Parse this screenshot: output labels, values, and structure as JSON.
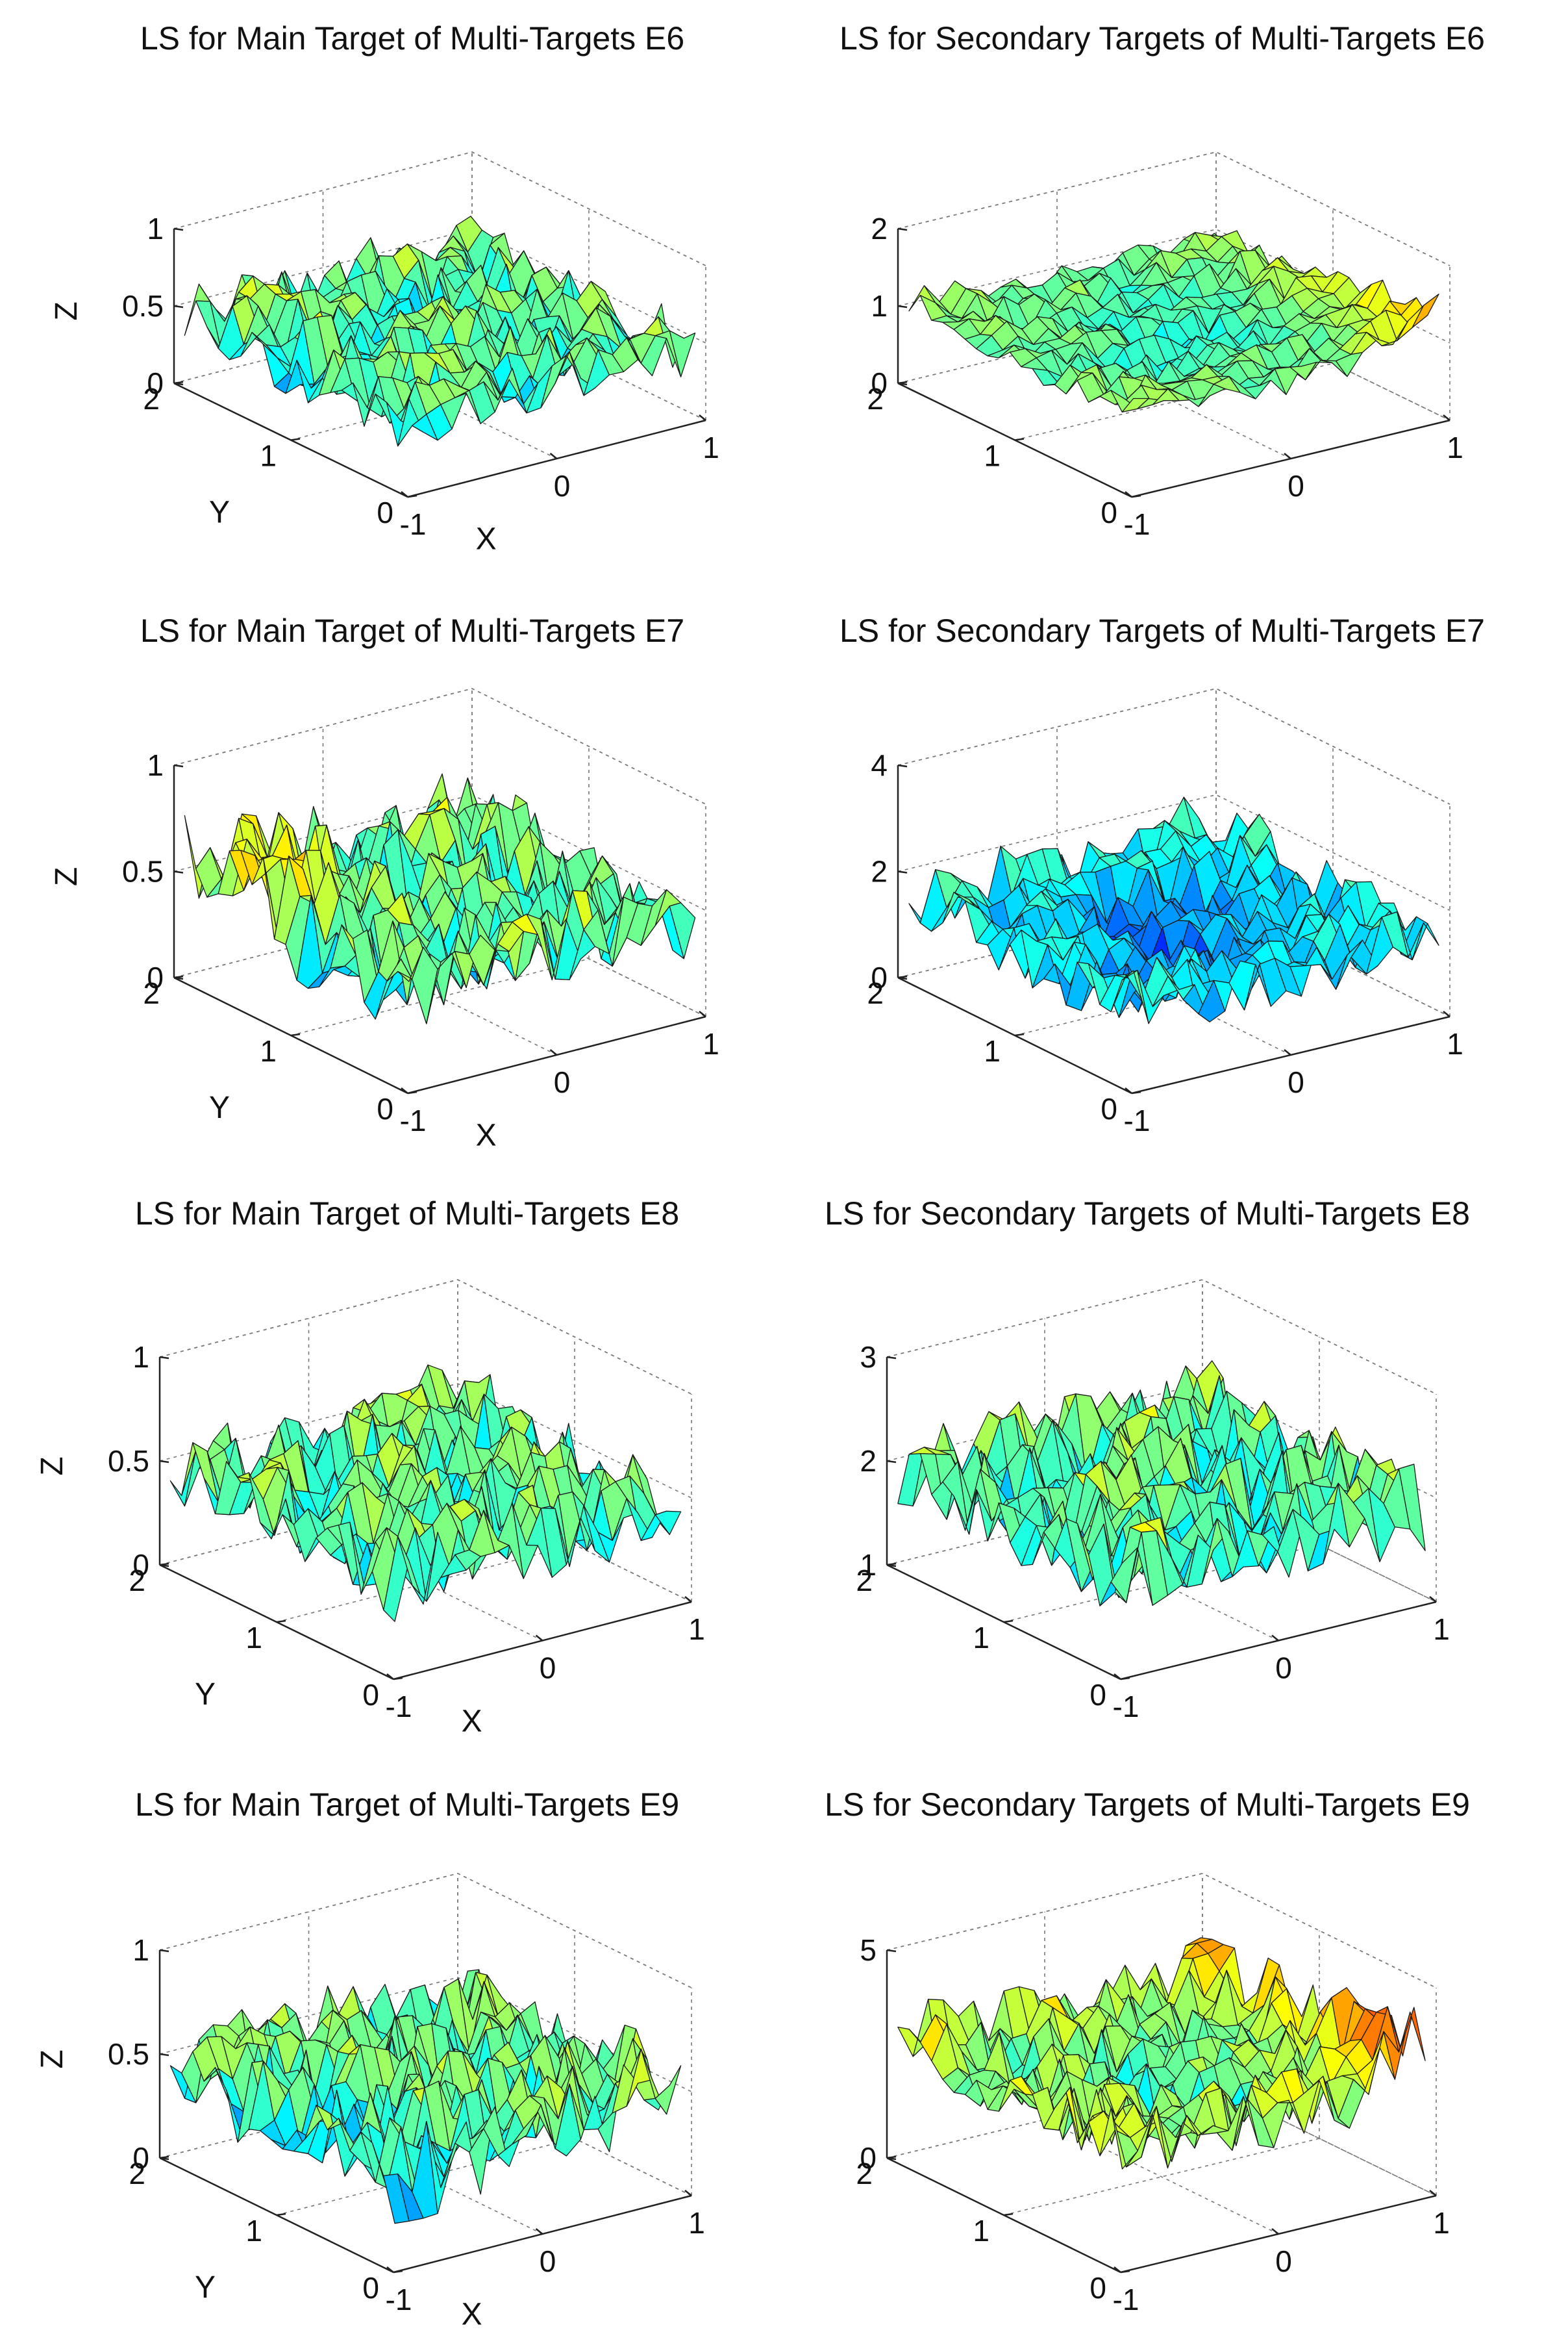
{
  "colormap": "jet",
  "colors": {
    "background": "#ffffff",
    "axis": "#222222",
    "grid": "#777777",
    "edge": "#1a1a1a"
  },
  "chart_data": [
    {
      "type": "surface",
      "panel": "E6-main",
      "title": "LS for Main Target of Multi-Targets E6",
      "xlabel": "X",
      "ylabel": "Y",
      "zlabel": "Z",
      "xlim": [
        -1,
        1
      ],
      "ylim": [
        0,
        2
      ],
      "zlim": [
        0,
        1
      ],
      "xticks": [
        "-1",
        "0",
        "1"
      ],
      "yticks": [
        "0",
        "1",
        "2"
      ],
      "zticks": [
        "0",
        "0.5",
        "1"
      ],
      "grid": true,
      "surface": {
        "rows": 21,
        "cols": 21,
        "mean": 0.45,
        "amplitude": 0.28,
        "seed": 11,
        "trend": "peak-center"
      }
    },
    {
      "type": "surface",
      "panel": "E6-secondary",
      "title": "LS for Secondary Targets of Multi-Targets E6",
      "xlabel": "",
      "ylabel": "",
      "zlabel": "",
      "xlim": [
        -1,
        1
      ],
      "ylim": [
        0,
        2
      ],
      "zlim": [
        0,
        2
      ],
      "xticks": [
        "-1",
        "0",
        "1"
      ],
      "yticks": [
        "0",
        "1",
        "2"
      ],
      "zticks": [
        "0",
        "1",
        "2"
      ],
      "grid": true,
      "surface": {
        "rows": 21,
        "cols": 21,
        "mean": 0.95,
        "amplitude": 0.28,
        "seed": 23,
        "trend": "bowl-rise"
      }
    },
    {
      "type": "surface",
      "panel": "E7-main",
      "title": "LS for Main Target of Multi-Targets E7",
      "xlabel": "X",
      "ylabel": "Y",
      "zlabel": "Z",
      "xlim": [
        -1,
        1
      ],
      "ylim": [
        0,
        2
      ],
      "zlim": [
        0,
        1
      ],
      "xticks": [
        "-1",
        "0",
        "1"
      ],
      "yticks": [
        "0",
        "1",
        "2"
      ],
      "zticks": [
        "0",
        "0.5",
        "1"
      ],
      "grid": true,
      "surface": {
        "rows": 21,
        "cols": 21,
        "mean": 0.45,
        "amplitude": 0.3,
        "seed": 37,
        "trend": "peak-left"
      }
    },
    {
      "type": "surface",
      "panel": "E7-secondary",
      "title": "LS for Secondary Targets of Multi-Targets E7",
      "xlabel": "",
      "ylabel": "",
      "zlabel": "",
      "xlim": [
        -1,
        1
      ],
      "ylim": [
        0,
        2
      ],
      "zlim": [
        0,
        4
      ],
      "xticks": [
        "-1",
        "0",
        "1"
      ],
      "yticks": [
        "0",
        "1",
        "2"
      ],
      "zticks": [
        "0",
        "2",
        "4"
      ],
      "grid": true,
      "surface": {
        "rows": 21,
        "cols": 21,
        "mean": 1.3,
        "amplitude": 0.45,
        "seed": 41,
        "trend": "bowl"
      }
    },
    {
      "type": "surface",
      "panel": "E8-main",
      "title": "LS for Main Target of Multi-Targets E8",
      "xlabel": "X",
      "ylabel": "Y",
      "zlabel": "Z",
      "xlim": [
        -1,
        1
      ],
      "ylim": [
        0,
        2
      ],
      "zlim": [
        0,
        1
      ],
      "xticks": [
        "-1",
        "0",
        "1"
      ],
      "yticks": [
        "0",
        "1",
        "2"
      ],
      "zticks": [
        "0",
        "0.5",
        "1"
      ],
      "grid": true,
      "surface": {
        "rows": 21,
        "cols": 21,
        "mean": 0.45,
        "amplitude": 0.28,
        "seed": 53,
        "trend": "peak-center"
      }
    },
    {
      "type": "surface",
      "panel": "E8-secondary",
      "title": "LS for Secondary Targets of Multi-Targets E8",
      "xlabel": "",
      "ylabel": "",
      "zlabel": "",
      "xlim": [
        -1,
        1
      ],
      "ylim": [
        0,
        2
      ],
      "zlim": [
        1,
        3
      ],
      "xticks": [
        "-1",
        "0",
        "1"
      ],
      "yticks": [
        "0",
        "1",
        "2"
      ],
      "zticks": [
        "1",
        "2",
        "3"
      ],
      "grid": true,
      "surface": {
        "rows": 21,
        "cols": 21,
        "mean": 1.9,
        "amplitude": 0.3,
        "seed": 67,
        "trend": "peak-center"
      }
    },
    {
      "type": "surface",
      "panel": "E9-main",
      "title": "LS for Main Target of Multi-Targets E9",
      "xlabel": "X",
      "ylabel": "Y",
      "zlabel": "Z",
      "xlim": [
        -1,
        1
      ],
      "ylim": [
        0,
        2
      ],
      "zlim": [
        0,
        1
      ],
      "xticks": [
        "-1",
        "0",
        "1"
      ],
      "yticks": [
        "0",
        "1",
        "2"
      ],
      "zticks": [
        "0",
        "0.5",
        "1"
      ],
      "grid": true,
      "surface": {
        "rows": 21,
        "cols": 21,
        "mean": 0.45,
        "amplitude": 0.3,
        "seed": 71,
        "trend": "rise-right"
      }
    },
    {
      "type": "surface",
      "panel": "E9-secondary",
      "title": "LS for Secondary Targets of Multi-Targets E9",
      "xlabel": "",
      "ylabel": "",
      "zlabel": "",
      "xlim": [
        -1,
        1
      ],
      "ylim": [
        0,
        2
      ],
      "zlim": [
        0,
        5
      ],
      "xticks": [
        "-1",
        "0",
        "1"
      ],
      "yticks": [
        "0",
        "1",
        "2"
      ],
      "zticks": [
        "0",
        "5"
      ],
      "grid": true,
      "surface": {
        "rows": 21,
        "cols": 21,
        "mean": 2.6,
        "amplitude": 0.45,
        "seed": 89,
        "trend": "bowl-rise"
      }
    }
  ]
}
